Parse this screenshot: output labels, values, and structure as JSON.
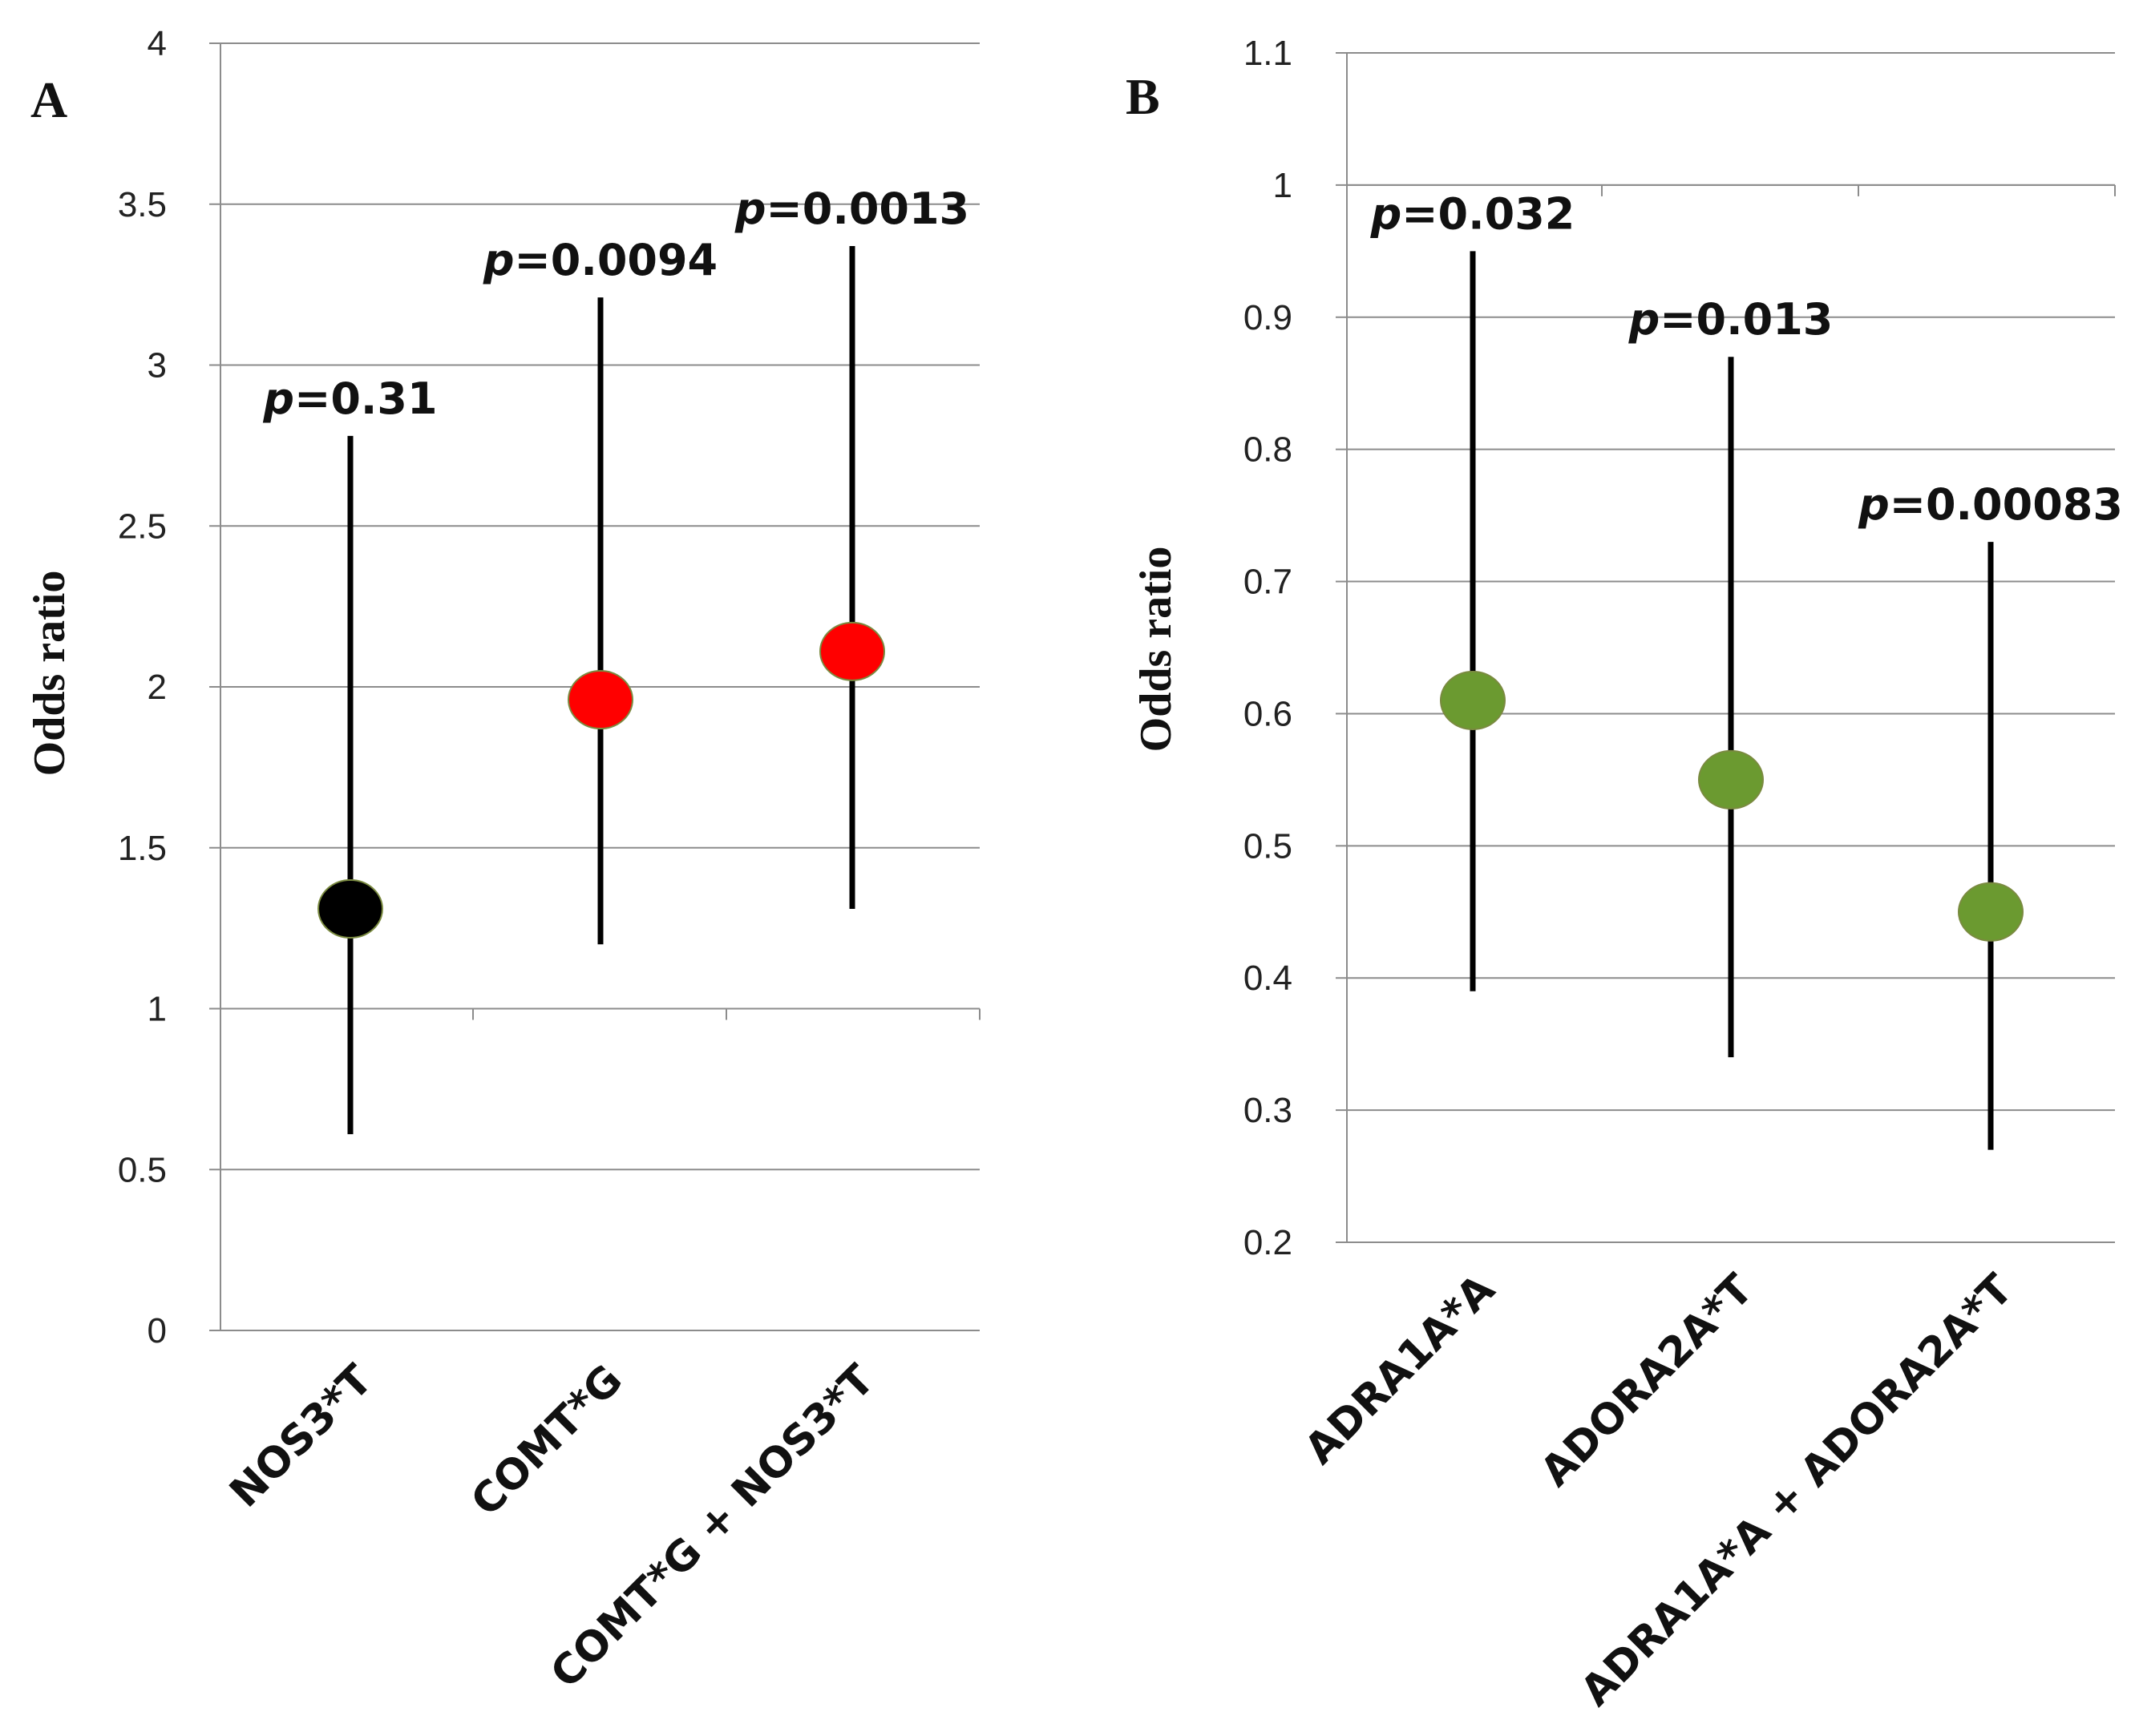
{
  "chart_data": [
    {
      "type": "scatter",
      "panel_label": "A",
      "ylabel": "Odds ratio",
      "xlabel": "",
      "ylim": [
        0,
        4
      ],
      "yticks": [
        "0",
        "0.5",
        "1",
        "1.5",
        "2",
        "2.5",
        "3",
        "3.5",
        "4"
      ],
      "grid": true,
      "categories": [
        "NOS3*T",
        "COMT*G",
        "COMT*G + NOS3*T"
      ],
      "values": [
        1.31,
        1.96,
        2.11
      ],
      "ci_lower": [
        0.61,
        1.2,
        1.31
      ],
      "ci_upper": [
        2.78,
        3.21,
        3.37
      ],
      "annotations": [
        {
          "p": "p",
          "value": "=0.31"
        },
        {
          "p": "p",
          "value": "=0.0094"
        },
        {
          "p": "p",
          "value": "=0.0013"
        }
      ],
      "colors": [
        "#000000",
        "#ff0000",
        "#ff0000"
      ],
      "x_axis_crosses_at": 1
    },
    {
      "type": "scatter",
      "panel_label": "B",
      "ylabel": "Odds ratio",
      "xlabel": "",
      "ylim": [
        0.2,
        1.1
      ],
      "yticks": [
        "0.2",
        "0.3",
        "0.4",
        "0.5",
        "0.6",
        "0.7",
        "0.8",
        "0.9",
        "1",
        "1.1"
      ],
      "grid": true,
      "categories": [
        "ADRA1A*A",
        "ADORA2A*T",
        "ADRA1A*A + ADORA2A*T"
      ],
      "values": [
        0.61,
        0.55,
        0.45
      ],
      "ci_lower": [
        0.39,
        0.34,
        0.27
      ],
      "ci_upper": [
        0.95,
        0.87,
        0.73
      ],
      "annotations": [
        {
          "p": "p",
          "value": "=0.032"
        },
        {
          "p": "p",
          "value": "=0.013"
        },
        {
          "p": "p",
          "value": "=0.00083"
        }
      ],
      "colors": [
        "#6b9a30",
        "#6b9a30",
        "#6b9a30"
      ],
      "x_axis_crosses_at": 1
    }
  ]
}
